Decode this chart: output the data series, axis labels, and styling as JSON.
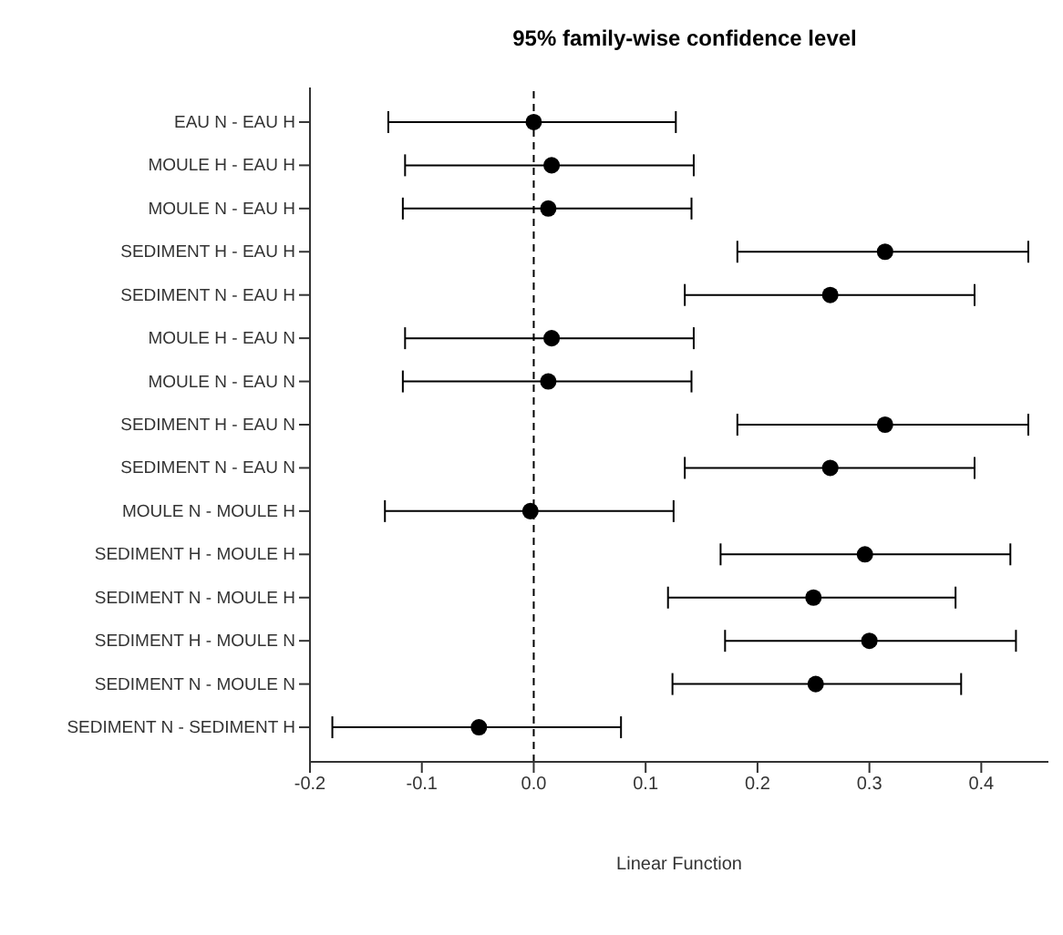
{
  "chart_data": {
    "type": "scatter",
    "orientation": "horizontal",
    "title": "95% family-wise confidence level",
    "xlabel": "Linear Function",
    "categories": [
      "EAU N - EAU H",
      "MOULE H - EAU H",
      "MOULE N - EAU H",
      "SEDIMENT H - EAU H",
      "SEDIMENT N - EAU H",
      "MOULE H - EAU N",
      "MOULE N - EAU N",
      "SEDIMENT H - EAU N",
      "SEDIMENT N - EAU N",
      "MOULE N - MOULE H",
      "SEDIMENT H - MOULE H",
      "SEDIMENT N - MOULE H",
      "SEDIMENT H - MOULE N",
      "SEDIMENT N - MOULE N",
      "SEDIMENT N - SEDIMENT H"
    ],
    "series": [
      {
        "color": "#000000",
        "values": [
          0.0,
          0.016,
          0.013,
          0.314,
          0.265,
          0.016,
          0.013,
          0.314,
          0.265,
          -0.003,
          0.296,
          0.25,
          0.3,
          0.252,
          -0.049
        ],
        "errors": [
          [
            -0.13,
            0.127
          ],
          [
            -0.115,
            0.143
          ],
          [
            -0.117,
            0.141
          ],
          [
            0.182,
            0.442
          ],
          [
            0.135,
            0.394
          ],
          [
            -0.115,
            0.143
          ],
          [
            -0.117,
            0.141
          ],
          [
            0.182,
            0.442
          ],
          [
            0.135,
            0.394
          ],
          [
            -0.133,
            0.125
          ],
          [
            0.167,
            0.426
          ],
          [
            0.12,
            0.377
          ],
          [
            0.171,
            0.431
          ],
          [
            0.124,
            0.382
          ],
          [
            -0.18,
            0.078
          ]
        ]
      }
    ],
    "xlim": [
      -0.2,
      0.46
    ],
    "xticks": [
      -0.2,
      -0.1,
      {
        "value": 0,
        "label": "0.0"
      },
      0.1,
      0.2,
      0.3,
      0.4
    ],
    "ref_lines": [
      {
        "axis": "x",
        "value": 0,
        "line_style": "dashed",
        "color": "#000000"
      }
    ],
    "marker": "circle",
    "grid": false
  }
}
